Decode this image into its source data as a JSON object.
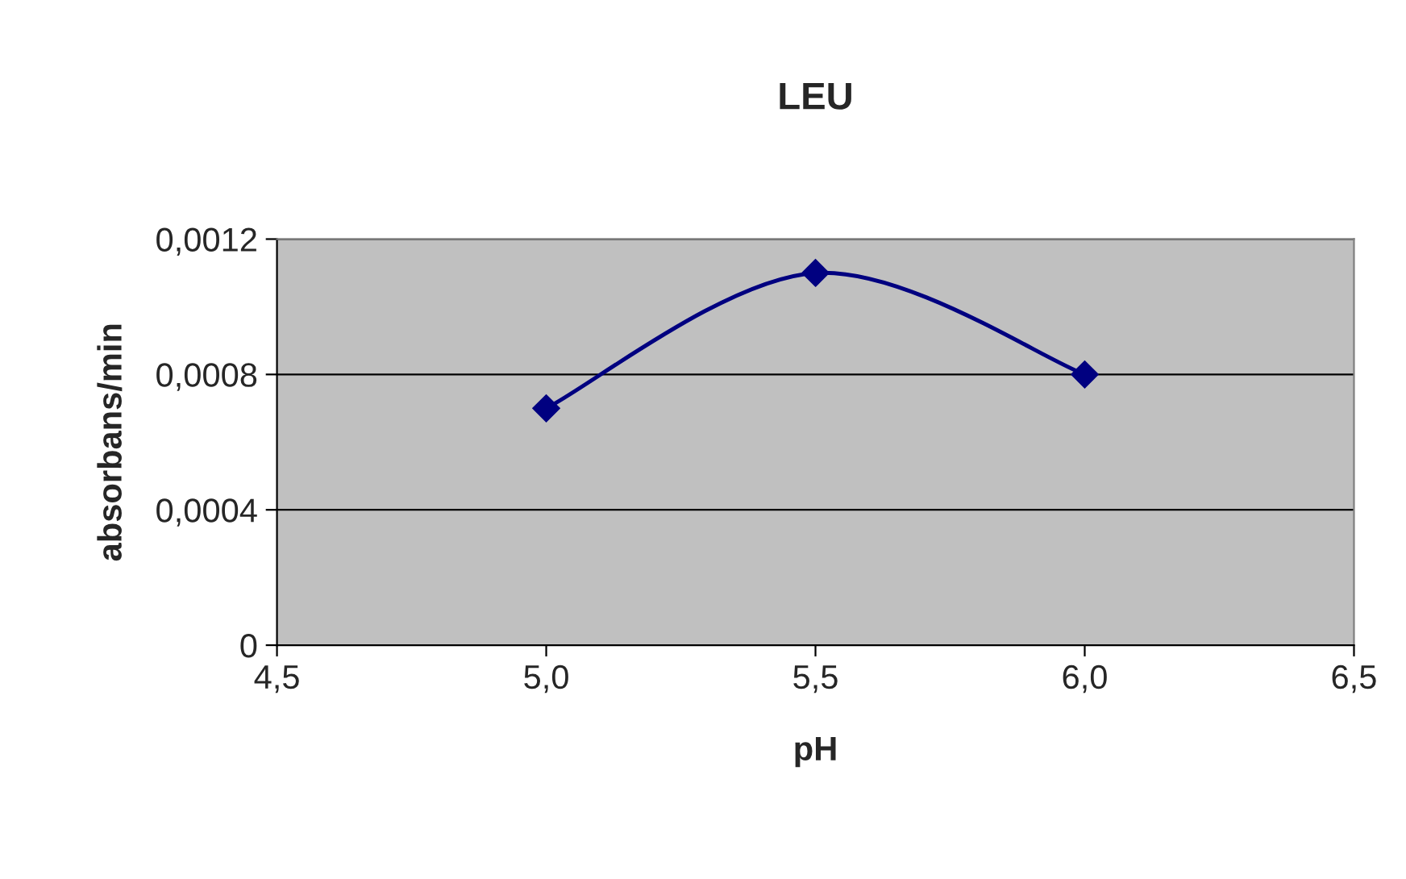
{
  "chart_data": {
    "type": "line",
    "title": "LEU",
    "xlabel": "pH",
    "ylabel": "absorbans/min",
    "x": [
      5.0,
      5.5,
      6.0
    ],
    "series": [
      {
        "color": "#000080",
        "values": [
          0.0007,
          0.0011,
          0.0008
        ]
      }
    ],
    "xlim": [
      4.5,
      6.5
    ],
    "xticks": [
      {
        "value": 4.5,
        "label": "4,5"
      },
      {
        "value": 5.0,
        "label": "5,0"
      },
      {
        "value": 5.5,
        "label": "5,5"
      },
      {
        "value": 6.0,
        "label": "6,0"
      },
      {
        "value": 6.5,
        "label": "6,5"
      }
    ],
    "ylim": [
      0,
      0.0012
    ],
    "yticks": [
      {
        "value": 0,
        "label": "0"
      },
      {
        "value": 0.0004,
        "label": "0,0004"
      },
      {
        "value": 0.0008,
        "label": "0,0008"
      },
      {
        "value": 0.0012,
        "label": "0,0012"
      }
    ],
    "grid": "y",
    "marker": "diamond",
    "line_style": "solid",
    "legend": false
  }
}
